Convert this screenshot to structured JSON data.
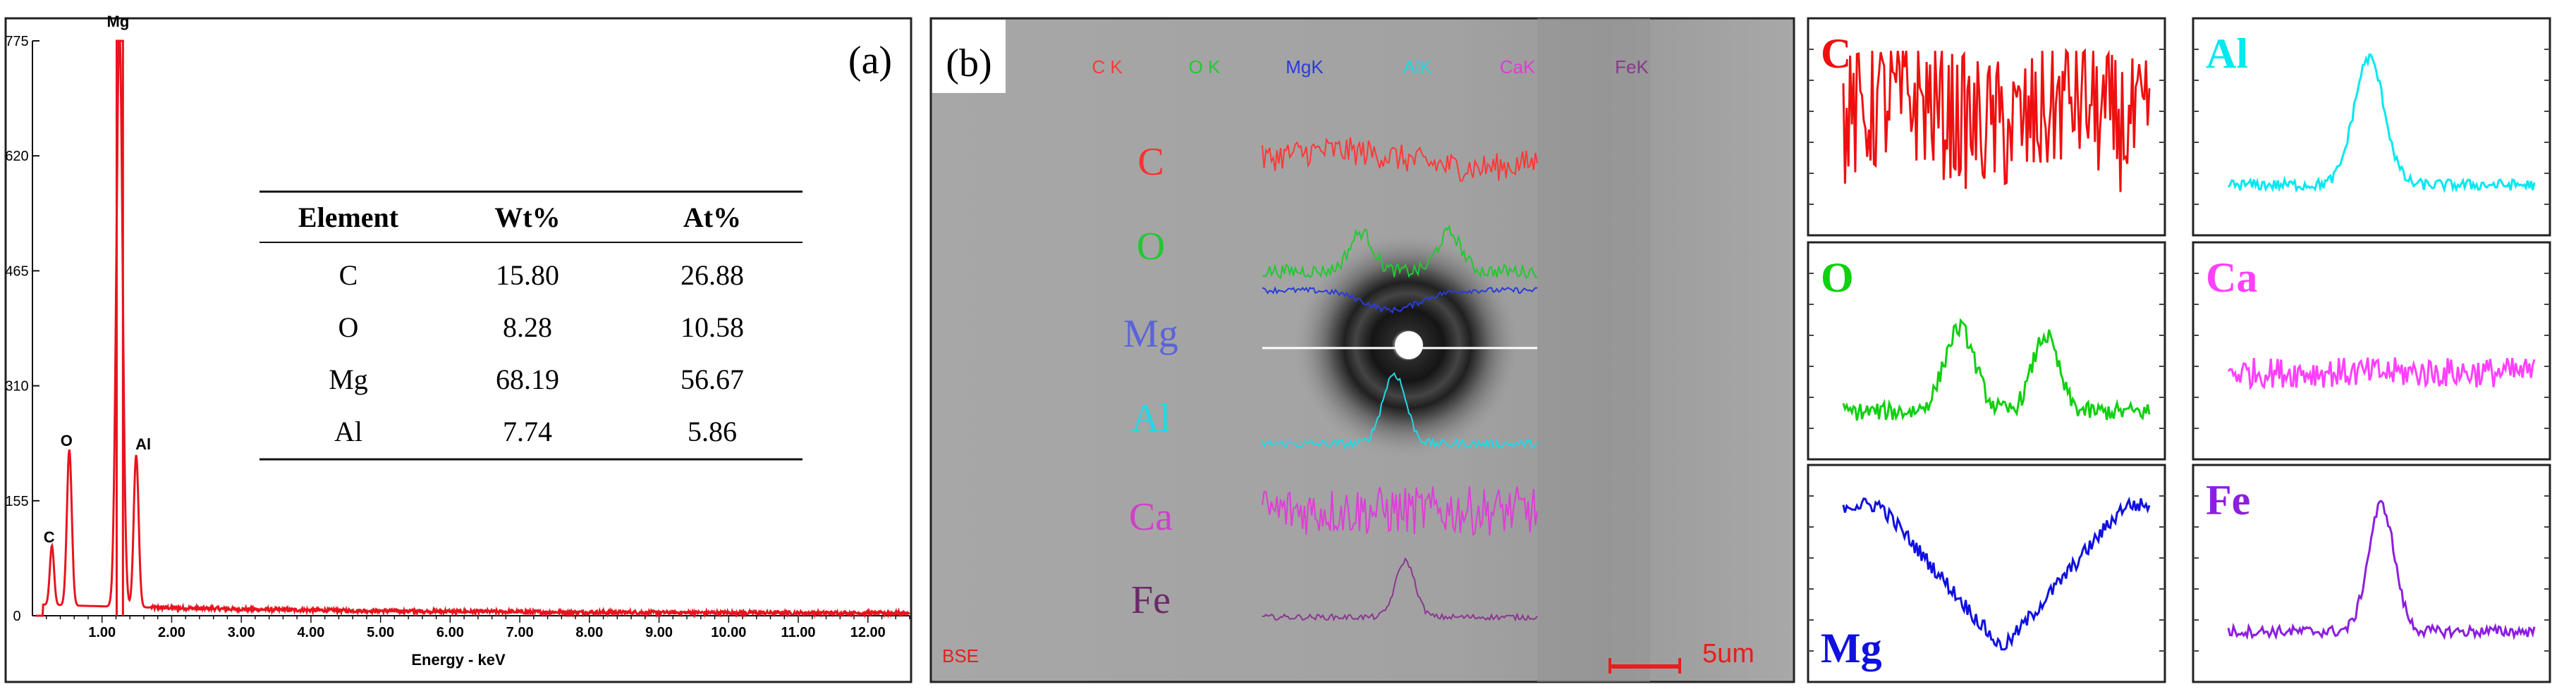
{
  "panel_a": {
    "label": "(a)",
    "xlabel": "Energy - keV",
    "table": {
      "headers": [
        "Element",
        "Wt%",
        "At%"
      ],
      "rows": [
        [
          "C",
          "15.80",
          "26.88"
        ],
        [
          "O",
          "8.28",
          "10.58"
        ],
        [
          "Mg",
          "68.19",
          "56.67"
        ],
        [
          "Al",
          "7.74",
          "5.86"
        ]
      ]
    },
    "peak_labels": [
      "C",
      "O",
      "Mg",
      "Al"
    ],
    "line_color": "#e8141e"
  },
  "panel_b": {
    "label": "(b)",
    "legend": [
      {
        "text": "C K",
        "color": "#ff3838"
      },
      {
        "text": "O K",
        "color": "#22c832"
      },
      {
        "text": "MgK",
        "color": "#2a3cd8"
      },
      {
        "text": "AlK",
        "color": "#22d8e6"
      },
      {
        "text": "CaK",
        "color": "#e03cd8"
      },
      {
        "text": "FeK",
        "color": "#8a3890"
      }
    ],
    "trace_labels": [
      {
        "text": "C",
        "color": "#ff3030"
      },
      {
        "text": "O",
        "color": "#22c832"
      },
      {
        "text": "Mg",
        "color": "#5a64d8"
      },
      {
        "text": "Al",
        "color": "#22d8e6"
      },
      {
        "text": "Ca",
        "color": "#d040c8"
      },
      {
        "text": "Fe",
        "color": "#6a2a6a"
      }
    ],
    "bse_label": "BSE",
    "scale_label": "5um",
    "scale_color": "#e81e1e"
  },
  "line_scans": [
    {
      "element": "C",
      "color": "#ee1010"
    },
    {
      "element": "Al",
      "color": "#00e8f0"
    },
    {
      "element": "O",
      "color": "#10d010"
    },
    {
      "element": "Ca",
      "color": "#ff40ff"
    },
    {
      "element": "Mg",
      "color": "#1010e0"
    },
    {
      "element": "Fe",
      "color": "#8c1ee0"
    }
  ],
  "chart_data": {
    "type": "line",
    "title": "",
    "xlabel": "Energy - keV",
    "ylabel": "",
    "xlim": [
      0,
      12.6
    ],
    "ylim": [
      0,
      775
    ],
    "x_ticks": [
      "1.00",
      "2.00",
      "3.00",
      "4.00",
      "5.00",
      "6.00",
      "7.00",
      "8.00",
      "9.00",
      "10.00",
      "11.00",
      "12.00"
    ],
    "y_ticks": [
      "0",
      "155",
      "310",
      "465",
      "620",
      "775"
    ],
    "peaks": [
      {
        "label": "C",
        "energy": 0.28,
        "counts": 80
      },
      {
        "label": "O",
        "energy": 0.53,
        "counts": 210
      },
      {
        "label": "Mg",
        "energy": 1.25,
        "counts": 775
      },
      {
        "label": "Al",
        "energy": 1.49,
        "counts": 205
      }
    ],
    "grid": false,
    "legend": "none"
  }
}
